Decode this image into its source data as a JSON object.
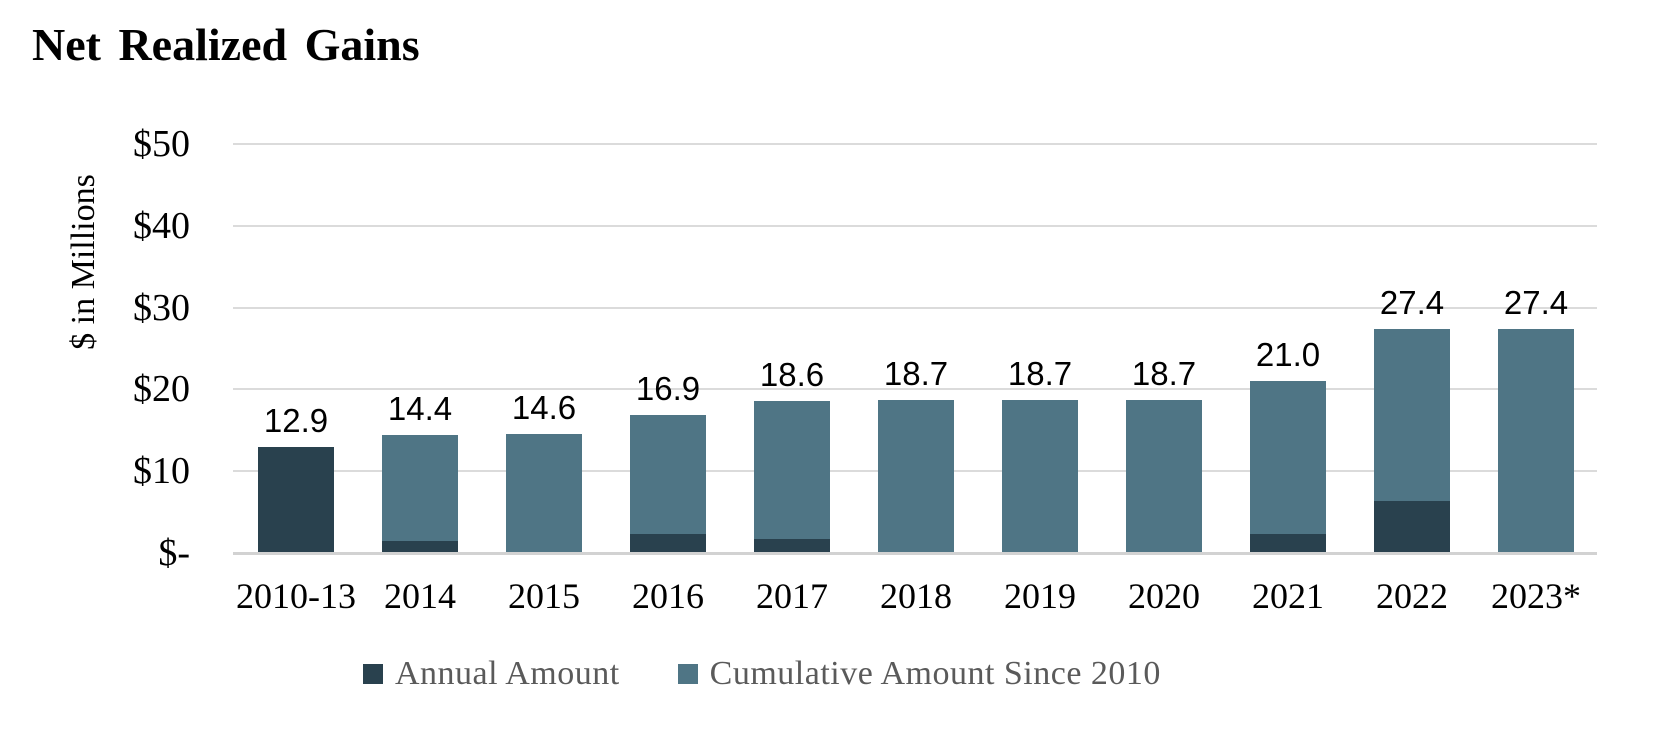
{
  "page": {
    "background": "#FFFFFF"
  },
  "title": "Net Realized Gains",
  "y_axis": {
    "label": "$ in Millions",
    "ticks": [
      {
        "label": "$50",
        "value": 50
      },
      {
        "label": "$40",
        "value": 40
      },
      {
        "label": "$30",
        "value": 30
      },
      {
        "label": "$20",
        "value": 20
      },
      {
        "label": "$10",
        "value": 10
      },
      {
        "label": "$-",
        "value": 0
      }
    ]
  },
  "legend": {
    "items": [
      {
        "label": "Annual Amount",
        "color": "#29414E"
      },
      {
        "label": "Cumulative Amount Since 2010",
        "color": "#4F7585"
      }
    ]
  },
  "colors": {
    "annual": "#29414E",
    "cumulative": "#4F7585",
    "gridline": "#DBDBDB",
    "axis_line": "#D2D2D2",
    "legend_text": "#5A5A5A",
    "data_label": "#000000"
  },
  "chart_data": {
    "type": "bar",
    "stacked": true,
    "title": "Net Realized Gains",
    "ylabel": "$ in Millions",
    "ylim": [
      0,
      50
    ],
    "ytick_values": [
      0,
      10,
      20,
      30,
      40,
      50
    ],
    "ytick_labels": [
      "$-",
      "$10",
      "$20",
      "$30",
      "$40",
      "$50"
    ],
    "grid": true,
    "legend_position": "bottom",
    "categories": [
      "2010-13",
      "2014",
      "2015",
      "2016",
      "2017",
      "2018",
      "2019",
      "2020",
      "2021",
      "2022",
      "2023*"
    ],
    "series": [
      {
        "name": "Annual Amount",
        "color": "#29414E",
        "values": [
          12.9,
          1.5,
          0,
          2.3,
          1.7,
          0,
          0,
          0,
          2.3,
          6.4,
          0
        ]
      },
      {
        "name": "Cumulative Amount Since 2010",
        "color": "#4F7585",
        "values": [
          12.9,
          14.4,
          14.6,
          16.9,
          18.6,
          18.7,
          18.7,
          18.7,
          21.0,
          27.4,
          27.4
        ]
      }
    ],
    "data_labels": [
      "12.9",
      "14.4",
      "14.6",
      "16.9",
      "18.6",
      "18.7",
      "18.7",
      "18.7",
      "21.0",
      "27.4",
      "27.4"
    ]
  }
}
